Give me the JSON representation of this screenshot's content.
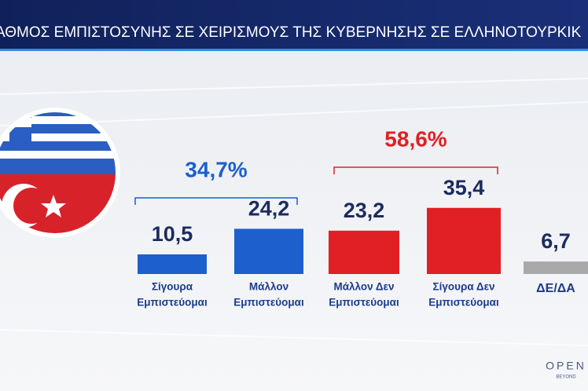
{
  "chart_data": {
    "type": "bar",
    "title": "ΑΘΜΟΣ ΕΜΠΙΣΤΟΣΥΝΗΣ ΣΕ ΧΕΙΡΙΣΜΟΥΣ ΤΗΣ ΚΥΒΕΡΝΗΣΗΣ ΣΕ ΕΛΛΗΝΟΤΟΥΡΚΙΚ",
    "categories": [
      [
        "Σίγουρα",
        "Εμπιστεύομαι"
      ],
      [
        "Μάλλον",
        "Εμπιστεύομαι"
      ],
      [
        "Μάλλον Δεν",
        "Εμπιστεύομαι"
      ],
      [
        "Σίγουρα Δεν",
        "Εμπιστεύομαι"
      ],
      [
        "ΔΕ/ΔΑ"
      ]
    ],
    "values": [
      10.5,
      24.2,
      23.2,
      35.4,
      6.7
    ],
    "value_labels": [
      "10,5",
      "24,2",
      "23,2",
      "35,4",
      "6,7"
    ],
    "colors": [
      "#1d5fcc",
      "#1d5fcc",
      "#e02024",
      "#e02024",
      "#a9a9a9"
    ],
    "groups": [
      {
        "label": "34,7%",
        "value": 34.7,
        "color": "#1d5fcc"
      },
      {
        "label": "58,6%",
        "value": 58.6,
        "color": "#e02024"
      }
    ],
    "logo": {
      "name": "OPEN",
      "tagline": "BEYOND"
    }
  }
}
